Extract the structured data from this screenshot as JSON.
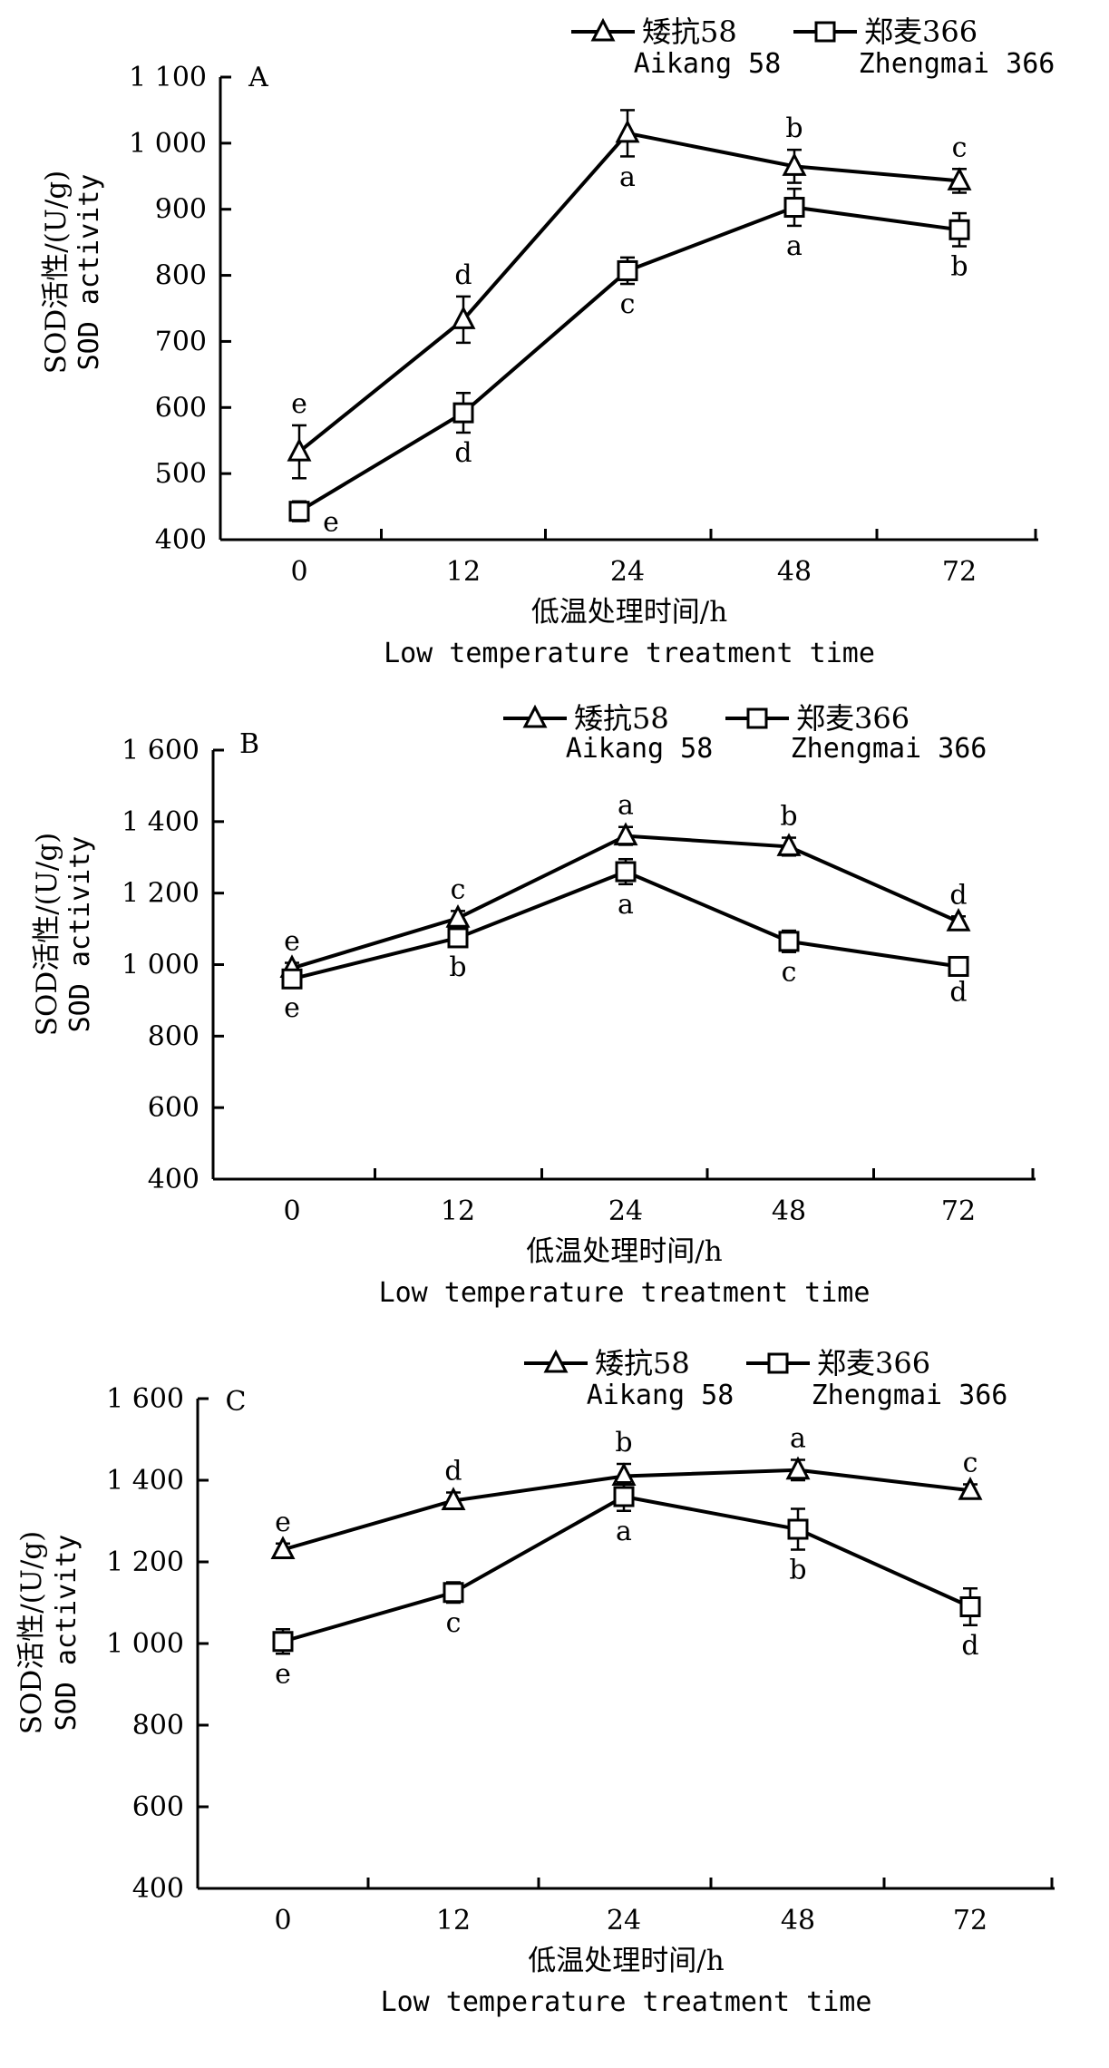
{
  "chart_data": [
    {
      "type": "line",
      "panel_label": "A",
      "categories": [
        "0",
        "12",
        "24",
        "48",
        "72"
      ],
      "xlabel": "低温处理时间/h",
      "xlabel_en": "Low temperature treatment time",
      "ylabel": "SOD活性/(U/g)",
      "ylabel_en": "SOD activity",
      "ylim": [
        400,
        1100
      ],
      "yticks": [
        400,
        500,
        600,
        700,
        800,
        900,
        1000,
        1100
      ],
      "ytick_labels": [
        "400",
        "500",
        "600",
        "700",
        "800",
        "900",
        "1 000",
        "1 100"
      ],
      "series": [
        {
          "name": "矮抗58",
          "name_en": "Aikang 58",
          "marker": "triangle",
          "values": [
            533,
            733,
            1015,
            965,
            943
          ],
          "errors": [
            40,
            35,
            35,
            25,
            18
          ],
          "letters": [
            "e",
            "d",
            "a",
            "b",
            "c"
          ]
        },
        {
          "name": "郑麦366",
          "name_en": "Zhengmai 366",
          "marker": "square",
          "values": [
            443,
            592,
            807,
            903,
            869
          ],
          "errors": [
            15,
            30,
            20,
            28,
            25
          ],
          "letters": [
            "e",
            "d",
            "c",
            "a",
            "b"
          ]
        }
      ]
    },
    {
      "type": "line",
      "panel_label": "B",
      "categories": [
        "0",
        "12",
        "24",
        "48",
        "72"
      ],
      "xlabel": "低温处理时间/h",
      "xlabel_en": "Low temperature treatment time",
      "ylabel": "SOD活性/(U/g)",
      "ylabel_en": "SOD activity",
      "ylim": [
        400,
        1600
      ],
      "yticks": [
        400,
        600,
        800,
        1000,
        1200,
        1400,
        1600
      ],
      "ytick_labels": [
        "400",
        "600",
        "800",
        "1 000",
        "1 200",
        "1 400",
        "1 600"
      ],
      "series": [
        {
          "name": "矮抗58",
          "name_en": "Aikang 58",
          "marker": "triangle",
          "values": [
            990,
            1130,
            1360,
            1330,
            1120
          ],
          "errors": [
            15,
            20,
            25,
            25,
            15
          ],
          "letters": [
            "e",
            "c",
            "a",
            "b",
            "d"
          ]
        },
        {
          "name": "郑麦366",
          "name_en": "Zhengmai 366",
          "marker": "square",
          "values": [
            960,
            1075,
            1260,
            1065,
            995
          ],
          "errors": [
            25,
            25,
            35,
            30,
            15
          ],
          "letters": [
            "e",
            "b",
            "a",
            "c",
            "d"
          ]
        }
      ]
    },
    {
      "type": "line",
      "panel_label": "C",
      "categories": [
        "0",
        "12",
        "24",
        "48",
        "72"
      ],
      "xlabel": "低温处理时间/h",
      "xlabel_en": "Low temperature treatment time",
      "ylabel": "SOD活性/(U/g)",
      "ylabel_en": "SOD activity",
      "ylim": [
        400,
        1600
      ],
      "yticks": [
        400,
        600,
        800,
        1000,
        1200,
        1400,
        1600
      ],
      "ytick_labels": [
        "400",
        "600",
        "800",
        "1 000",
        "1 200",
        "1 400",
        "1 600"
      ],
      "series": [
        {
          "name": "矮抗58",
          "name_en": "Aikang 58",
          "marker": "triangle",
          "values": [
            1230,
            1350,
            1410,
            1425,
            1375
          ],
          "errors": [
            15,
            20,
            30,
            25,
            15
          ],
          "letters": [
            "e",
            "d",
            "b",
            "a",
            "c"
          ]
        },
        {
          "name": "郑麦366",
          "name_en": "Zhengmai 366",
          "marker": "square",
          "values": [
            1005,
            1125,
            1360,
            1280,
            1090
          ],
          "errors": [
            30,
            25,
            35,
            50,
            45
          ],
          "letters": [
            "e",
            "c",
            "a",
            "b",
            "d"
          ]
        }
      ]
    }
  ]
}
